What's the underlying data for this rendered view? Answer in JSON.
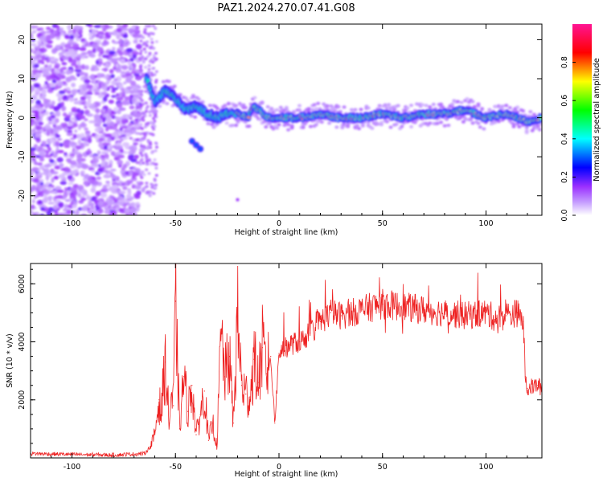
{
  "title": "PAZ1.2024.270.07.41.G08",
  "chart_data": [
    {
      "type": "heatmap",
      "xlabel": "Height of straight line (km)",
      "ylabel": "Frequency (Hz)",
      "xlim": [
        -120,
        127
      ],
      "ylim": [
        -25,
        24
      ],
      "xticks": [
        -100,
        -50,
        0,
        50,
        100
      ],
      "yticks": [
        -20,
        -10,
        0,
        10,
        20
      ],
      "colorbar": {
        "label": "Normalized spectral amplitude",
        "range": [
          0,
          1
        ],
        "ticks": [
          "0.0",
          "0.2",
          "0.4",
          "0.6",
          "0.8"
        ],
        "colors": [
          "#ffffff",
          "#9b30ff",
          "#0000ff",
          "#00ffff",
          "#00ff00",
          "#ffff00",
          "#ff0000",
          "#ff1493"
        ]
      },
      "ridge": {
        "x": [
          -65,
          -60,
          -55,
          -50,
          -45,
          -40,
          -35,
          -30,
          -25,
          -20,
          -15,
          -12,
          -10,
          -5,
          0,
          10,
          20,
          30,
          40,
          50,
          60,
          70,
          80,
          90,
          100,
          110,
          120,
          127
        ],
        "y": [
          12,
          4,
          7,
          5,
          2,
          3,
          1,
          0,
          1,
          1,
          0,
          3,
          2,
          0,
          0,
          0,
          1,
          0,
          0,
          1,
          0,
          1,
          1,
          2,
          0,
          1,
          -1,
          0
        ]
      },
      "secondary_branch": {
        "x": [
          -42,
          -40,
          -38
        ],
        "y": [
          -6,
          -7,
          -8
        ]
      },
      "noise_region_x": [
        -120,
        -67
      ]
    },
    {
      "type": "line",
      "xlabel": "Height of straight line (km)",
      "ylabel": "SNR (10 * v/v)",
      "xlim": [
        -120,
        127
      ],
      "ylim": [
        0,
        6700
      ],
      "xticks": [
        -100,
        -50,
        0,
        50,
        100
      ],
      "yticks": [
        2000,
        4000,
        6000
      ],
      "color": "#ee2222",
      "series": [
        {
          "x": [
            -120,
            -100,
            -80,
            -65,
            -62,
            -60,
            -58,
            -57,
            -55,
            -53,
            -52,
            -51,
            -50,
            -48,
            -46,
            -44,
            -42,
            -40,
            -38,
            -36,
            -34,
            -32,
            -30,
            -28,
            -26,
            -24,
            -22,
            -20,
            -18,
            -16,
            -14,
            -12,
            -10,
            -8,
            -6,
            -4,
            -2,
            0,
            5,
            10,
            15,
            20,
            25,
            30,
            40,
            50,
            60,
            70,
            80,
            90,
            100,
            105,
            110,
            115,
            118,
            119,
            120,
            125,
            127
          ],
          "y": [
            150,
            120,
            100,
            150,
            400,
            800,
            2000,
            1500,
            3300,
            1200,
            2200,
            1800,
            5400,
            1000,
            2800,
            1600,
            2500,
            800,
            1500,
            2300,
            600,
            1200,
            400,
            4200,
            2800,
            3500,
            1200,
            4900,
            2500,
            2200,
            2100,
            3400,
            2600,
            3800,
            2900,
            3500,
            1200,
            3600,
            3900,
            4000,
            4300,
            4700,
            5000,
            4900,
            5100,
            5300,
            5200,
            5100,
            5000,
            4900,
            5000,
            4800,
            4900,
            5000,
            4700,
            2800,
            2400,
            2500,
            2400
          ]
        }
      ]
    }
  ]
}
